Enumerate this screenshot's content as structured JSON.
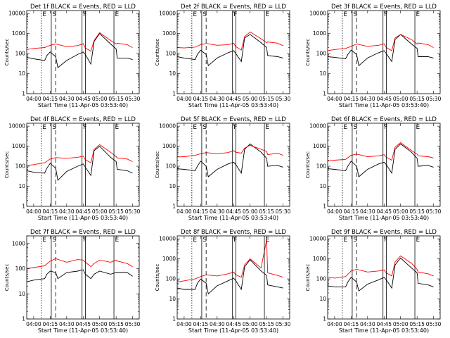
{
  "colors": {
    "events": "#000000",
    "lld": "#ff0000",
    "axes": "#000000",
    "background": "#ffffff"
  },
  "common": {
    "xlabel": "Start Time (11-Apr-05 03:53:40)",
    "ylabel": "Counts/sec",
    "x_ticks": [
      "04:00",
      "04:15",
      "04:30",
      "04:45",
      "05:00",
      "05:15",
      "05:30"
    ],
    "y_ticks": [
      "1",
      "10",
      "100",
      "1000",
      "10000"
    ]
  },
  "chart_data": [
    {
      "type": "line",
      "title": "Det 1f BLACK = Events, RED = LLD",
      "y_scale": "log",
      "ylim": [
        1,
        14000
      ],
      "flags": [
        "E",
        "S",
        "F",
        "E"
      ],
      "series": [
        {
          "name": "Events",
          "x": [
            "03:53",
            "04:00",
            "04:10",
            "04:12",
            "04:15",
            "04:20",
            "04:22",
            "04:30",
            "04:40",
            "04:45",
            "04:47",
            "04:52",
            "04:55",
            "05:00",
            "05:10",
            "05:15",
            "05:16",
            "05:25",
            "05:30"
          ],
          "values": [
            65,
            55,
            45,
            80,
            120,
            70,
            20,
            45,
            90,
            120,
            90,
            30,
            400,
            1000,
            300,
            170,
            60,
            60,
            50
          ]
        },
        {
          "name": "LLD",
          "x": [
            "03:53",
            "04:00",
            "04:10",
            "04:15",
            "04:20",
            "04:30",
            "04:40",
            "04:45",
            "04:47",
            "04:52",
            "04:55",
            "05:00",
            "05:10",
            "05:15",
            "05:16",
            "05:25",
            "05:30"
          ],
          "values": [
            160,
            180,
            200,
            260,
            300,
            220,
            250,
            310,
            190,
            130,
            450,
            1100,
            450,
            300,
            330,
            280,
            200
          ]
        }
      ]
    },
    {
      "type": "line",
      "title": "Det 2f BLACK = Events, RED = LLD",
      "y_scale": "log",
      "ylim": [
        1,
        14000
      ],
      "flags": [
        "E",
        "S",
        "F",
        "E"
      ],
      "series": [
        {
          "name": "Events",
          "x": [
            "03:53",
            "04:00",
            "04:10",
            "04:12",
            "04:15",
            "04:20",
            "04:22",
            "04:30",
            "04:40",
            "04:45",
            "04:47",
            "04:52",
            "04:55",
            "05:00",
            "05:10",
            "05:15",
            "05:16",
            "05:25",
            "05:30"
          ],
          "values": [
            70,
            60,
            50,
            90,
            150,
            90,
            25,
            60,
            110,
            140,
            100,
            40,
            600,
            900,
            350,
            200,
            80,
            70,
            60
          ]
        },
        {
          "name": "LLD",
          "x": [
            "03:53",
            "04:00",
            "04:10",
            "04:15",
            "04:20",
            "04:30",
            "04:40",
            "04:45",
            "04:47",
            "04:52",
            "04:55",
            "05:00",
            "05:10",
            "05:15",
            "05:16",
            "05:25",
            "05:30"
          ],
          "values": [
            200,
            190,
            210,
            280,
            320,
            260,
            280,
            330,
            220,
            150,
            700,
            1200,
            550,
            350,
            380,
            330,
            250
          ]
        }
      ]
    },
    {
      "type": "line",
      "title": "Det 3f BLACK = Events, RED = LLD",
      "y_scale": "log",
      "ylim": [
        1,
        14000
      ],
      "flags": [
        "E",
        "S",
        "F",
        "E"
      ],
      "series": [
        {
          "name": "Events",
          "x": [
            "03:53",
            "04:00",
            "04:10",
            "04:12",
            "04:15",
            "04:20",
            "04:22",
            "04:30",
            "04:40",
            "04:45",
            "04:47",
            "04:52",
            "04:55",
            "05:00",
            "05:10",
            "05:15",
            "05:16",
            "05:25",
            "05:30"
          ],
          "values": [
            70,
            65,
            55,
            90,
            150,
            90,
            25,
            60,
            110,
            140,
            100,
            40,
            500,
            900,
            300,
            180,
            70,
            70,
            60
          ]
        },
        {
          "name": "LLD",
          "x": [
            "03:53",
            "04:00",
            "04:10",
            "04:15",
            "04:20",
            "04:30",
            "04:40",
            "04:45",
            "04:47",
            "04:52",
            "04:55",
            "05:00",
            "05:10",
            "05:15",
            "05:16",
            "05:25",
            "05:30"
          ],
          "values": [
            140,
            160,
            180,
            230,
            300,
            230,
            260,
            310,
            200,
            140,
            600,
            900,
            500,
            300,
            340,
            280,
            200
          ]
        }
      ]
    },
    {
      "type": "line",
      "title": "Det 4f BLACK = Events, RED = LLD",
      "y_scale": "log",
      "ylim": [
        1,
        14000
      ],
      "flags": [
        "E",
        "S",
        "F",
        "E"
      ],
      "series": [
        {
          "name": "Events",
          "x": [
            "03:53",
            "04:00",
            "04:10",
            "04:12",
            "04:15",
            "04:20",
            "04:22",
            "04:30",
            "04:40",
            "04:45",
            "04:47",
            "04:52",
            "04:55",
            "05:00",
            "05:10",
            "05:15",
            "05:16",
            "05:25",
            "05:30"
          ],
          "values": [
            60,
            50,
            45,
            80,
            140,
            80,
            20,
            55,
            100,
            130,
            90,
            35,
            600,
            1000,
            280,
            170,
            70,
            60,
            45
          ]
        },
        {
          "name": "LLD",
          "x": [
            "03:53",
            "04:00",
            "04:10",
            "04:15",
            "04:20",
            "04:30",
            "04:40",
            "04:45",
            "04:47",
            "04:52",
            "04:55",
            "05:00",
            "05:10",
            "05:15",
            "05:16",
            "05:25",
            "05:30"
          ],
          "values": [
            110,
            120,
            150,
            230,
            270,
            250,
            280,
            320,
            210,
            150,
            700,
            1200,
            500,
            300,
            260,
            230,
            170
          ]
        }
      ]
    },
    {
      "type": "line",
      "title": "Det 5f BLACK = Events, RED = LLD",
      "y_scale": "log",
      "ylim": [
        1,
        14000
      ],
      "flags": [
        "E",
        "S",
        "F",
        "E"
      ],
      "series": [
        {
          "name": "Events",
          "x": [
            "03:53",
            "04:00",
            "04:10",
            "04:12",
            "04:15",
            "04:20",
            "04:22",
            "04:30",
            "04:40",
            "04:45",
            "04:47",
            "04:52",
            "04:55",
            "05:00",
            "05:10",
            "05:15",
            "05:16",
            "05:25",
            "05:30"
          ],
          "values": [
            75,
            70,
            60,
            100,
            180,
            100,
            30,
            70,
            130,
            160,
            120,
            45,
            700,
            1300,
            500,
            250,
            100,
            110,
            90
          ]
        },
        {
          "name": "LLD",
          "x": [
            "03:53",
            "04:00",
            "04:10",
            "04:15",
            "04:20",
            "04:30",
            "04:40",
            "04:45",
            "04:47",
            "04:52",
            "04:55",
            "05:00",
            "05:10",
            "05:15",
            "05:16",
            "05:25",
            "05:30"
          ],
          "values": [
            290,
            300,
            350,
            420,
            480,
            420,
            480,
            600,
            500,
            450,
            800,
            1100,
            700,
            550,
            380,
            450,
            350
          ]
        }
      ]
    },
    {
      "type": "line",
      "title": "Det 6f BLACK = Events, RED = LLD",
      "y_scale": "log",
      "ylim": [
        1,
        14000
      ],
      "flags": [
        "E",
        "S",
        "F",
        "E"
      ],
      "series": [
        {
          "name": "Events",
          "x": [
            "03:53",
            "04:00",
            "04:10",
            "04:12",
            "04:15",
            "04:20",
            "04:22",
            "04:30",
            "04:40",
            "04:45",
            "04:47",
            "04:52",
            "04:55",
            "05:00",
            "05:10",
            "05:15",
            "05:16",
            "05:25",
            "05:30"
          ],
          "values": [
            75,
            70,
            60,
            100,
            180,
            100,
            30,
            70,
            130,
            160,
            120,
            45,
            700,
            1300,
            500,
            250,
            100,
            110,
            90
          ]
        },
        {
          "name": "LLD",
          "x": [
            "03:53",
            "04:00",
            "04:10",
            "04:15",
            "04:20",
            "04:30",
            "04:40",
            "04:45",
            "04:47",
            "04:52",
            "04:55",
            "05:00",
            "05:10",
            "05:15",
            "05:16",
            "05:25",
            "05:30"
          ],
          "values": [
            180,
            200,
            220,
            350,
            400,
            300,
            330,
            380,
            280,
            200,
            900,
            1500,
            600,
            400,
            330,
            300,
            260
          ]
        }
      ]
    },
    {
      "type": "line",
      "title": "Det 7f BLACK = Events, RED = LLD",
      "y_scale": "log",
      "ylim": [
        1,
        2000
      ],
      "flags": [
        "E",
        "S",
        "F",
        "E"
      ],
      "series": [
        {
          "name": "Events",
          "x": [
            "03:53",
            "04:00",
            "04:10",
            "04:12",
            "04:15",
            "04:20",
            "04:22",
            "04:30",
            "04:40",
            "04:45",
            "04:47",
            "04:52",
            "04:55",
            "05:00",
            "05:10",
            "05:15",
            "05:16",
            "05:25",
            "05:30"
          ],
          "values": [
            30,
            35,
            40,
            60,
            80,
            70,
            40,
            70,
            80,
            90,
            60,
            40,
            60,
            80,
            60,
            70,
            70,
            70,
            50
          ]
        },
        {
          "name": "LLD",
          "x": [
            "03:53",
            "04:00",
            "04:10",
            "04:15",
            "04:20",
            "04:30",
            "04:40",
            "04:45",
            "04:47",
            "04:52",
            "04:55",
            "05:00",
            "05:10",
            "05:15",
            "05:16",
            "05:25",
            "05:30"
          ],
          "values": [
            100,
            110,
            130,
            200,
            250,
            180,
            230,
            220,
            180,
            120,
            160,
            220,
            180,
            220,
            200,
            160,
            120
          ]
        }
      ]
    },
    {
      "type": "line",
      "title": "Det 8f BLACK = Events, RED = LLD",
      "y_scale": "log",
      "ylim": [
        1,
        14000
      ],
      "flags": [
        "E",
        "S",
        "F",
        "E"
      ],
      "series": [
        {
          "name": "Events",
          "x": [
            "03:53",
            "04:00",
            "04:10",
            "04:12",
            "04:15",
            "04:20",
            "04:22",
            "04:30",
            "04:40",
            "04:45",
            "04:47",
            "04:52",
            "04:55",
            "05:00",
            "05:10",
            "05:15",
            "05:16",
            "05:25",
            "05:30"
          ],
          "values": [
            35,
            30,
            30,
            60,
            100,
            60,
            18,
            45,
            80,
            110,
            80,
            30,
            400,
            900,
            250,
            150,
            50,
            40,
            35
          ]
        },
        {
          "name": "LLD",
          "x": [
            "03:53",
            "04:00",
            "04:10",
            "04:15",
            "04:20",
            "04:30",
            "04:40",
            "04:45",
            "04:47",
            "04:52",
            "04:55",
            "05:00",
            "05:10",
            "05:15",
            "05:16",
            "05:25",
            "05:30"
          ],
          "values": [
            70,
            80,
            100,
            130,
            160,
            140,
            180,
            220,
            160,
            120,
            500,
            1000,
            350,
            9000,
            200,
            150,
            120
          ]
        }
      ]
    },
    {
      "type": "line",
      "title": "Det 9f BLACK = Events, RED = LLD",
      "y_scale": "log",
      "ylim": [
        1,
        14000
      ],
      "flags": [
        "E",
        "S",
        "F",
        "E"
      ],
      "series": [
        {
          "name": "Events",
          "x": [
            "03:53",
            "04:00",
            "04:10",
            "04:12",
            "04:15",
            "04:20",
            "04:22",
            "04:30",
            "04:40",
            "04:45",
            "04:47",
            "04:52",
            "04:55",
            "05:00",
            "05:10",
            "05:15",
            "05:16",
            "05:25",
            "05:30"
          ],
          "values": [
            45,
            40,
            40,
            70,
            120,
            70,
            25,
            55,
            90,
            120,
            90,
            35,
            500,
            1100,
            350,
            200,
            60,
            50,
            40
          ]
        },
        {
          "name": "LLD",
          "x": [
            "03:53",
            "04:00",
            "04:10",
            "04:15",
            "04:20",
            "04:30",
            "04:40",
            "04:45",
            "04:47",
            "04:52",
            "04:55",
            "05:00",
            "05:10",
            "05:15",
            "05:16",
            "05:25",
            "05:30"
          ],
          "values": [
            120,
            110,
            130,
            250,
            300,
            220,
            250,
            280,
            200,
            140,
            700,
            1400,
            600,
            300,
            220,
            180,
            140
          ]
        }
      ]
    }
  ]
}
